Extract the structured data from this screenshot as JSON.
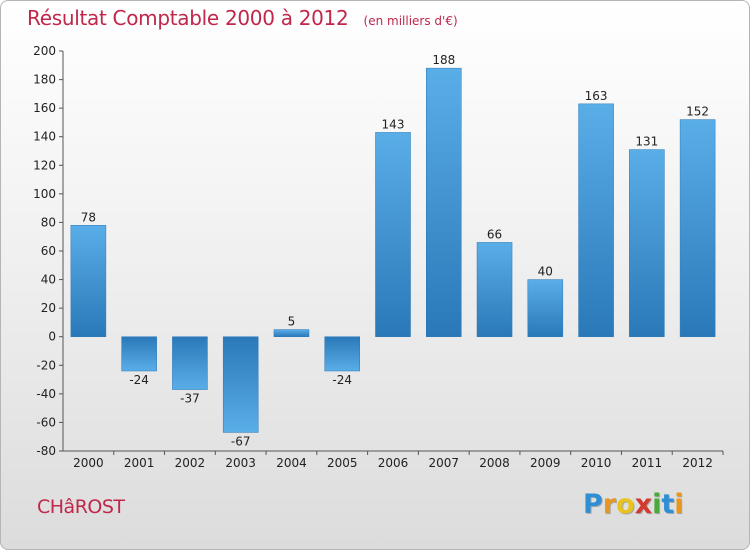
{
  "header": {
    "title": "Résultat Comptable 2000 à 2012",
    "subtitle": "(en milliers d'€)"
  },
  "footer": {
    "commune": "CHâROST",
    "logo_letters": [
      "P",
      "r",
      "o",
      "x",
      "i",
      "t",
      "i"
    ],
    "logo_colors": [
      "#2f8fd5",
      "#e8961f",
      "#e8c21f",
      "#d33a2e",
      "#4aa83c",
      "#2f8fd5",
      "#e8961f"
    ]
  },
  "chart_data": {
    "type": "bar",
    "title": "Résultat Comptable 2000 à 2012",
    "subtitle": "(en milliers d'€)",
    "xlabel": "",
    "ylabel": "",
    "categories": [
      "2000",
      "2001",
      "2002",
      "2003",
      "2004",
      "2005",
      "2006",
      "2007",
      "2008",
      "2009",
      "2010",
      "2011",
      "2012"
    ],
    "values": [
      78,
      -24,
      -37,
      -67,
      5,
      -24,
      143,
      188,
      66,
      40,
      163,
      131,
      152
    ],
    "ylim": [
      -80,
      200
    ],
    "yticks": [
      -80,
      -60,
      -40,
      -20,
      0,
      20,
      40,
      60,
      80,
      100,
      120,
      140,
      160,
      180,
      200
    ],
    "grid": false,
    "colors": {
      "bar_top": "#5aaee8",
      "bar_bottom": "#2a78b8",
      "axis": "#555555"
    }
  }
}
